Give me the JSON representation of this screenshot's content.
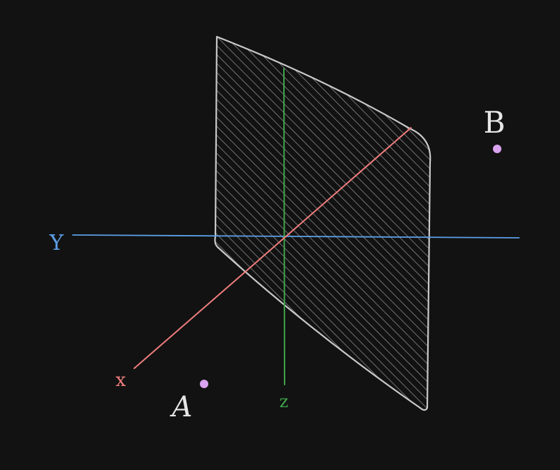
{
  "scene": {
    "background": "#121212",
    "colors": {
      "plane_stroke": "#c9c9c9",
      "hatch": "#8a8a8a",
      "x_axis": "#f07d7d",
      "y_axis": "#5b9fe6",
      "z_axis": "#3fa64a",
      "point": "#d9a3ef",
      "label": "#e6e6e6"
    },
    "axes": {
      "x": {
        "label": "x"
      },
      "y": {
        "label": "Y"
      },
      "z": {
        "label": "z"
      }
    },
    "points": [
      {
        "id": "A",
        "label": "A"
      },
      {
        "id": "B",
        "label": "B"
      }
    ],
    "plane": {
      "hatched": true
    }
  }
}
